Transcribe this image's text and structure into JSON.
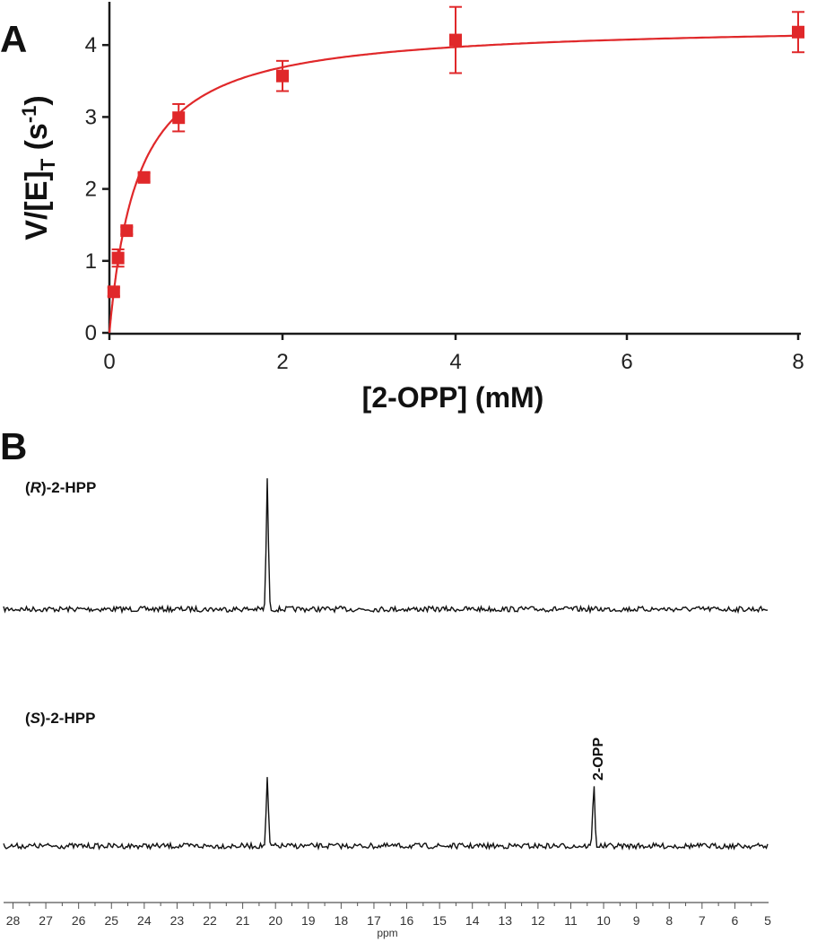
{
  "panel_a": {
    "label": "A",
    "y_label_main": "V/[E]",
    "y_label_sub": "T",
    "y_label_unit_open": " (s",
    "y_label_unit_sup": "-1",
    "y_label_unit_close": ")",
    "x_label": "[2-OPP] (mM)"
  },
  "panel_b": {
    "label": "B",
    "trace_r_label_open": "(",
    "trace_r_label_italic": "R",
    "trace_r_label_close": ")-2-HPP",
    "trace_s_label_open": "(",
    "trace_s_label_italic": "S",
    "trace_s_label_close": ")-2-HPP",
    "peak_annotation": "2-OPP",
    "x_label": "ppm"
  },
  "colors": {
    "curve": "#e0282a",
    "marker": "#e0282a",
    "axis": "#1a1a1a",
    "spectrum": "#111111"
  },
  "chart_data": [
    {
      "type": "scatter",
      "title": "",
      "xlabel": "[2-OPP] (mM)",
      "ylabel": "V/[E]T (s-1)",
      "x_tick_labels": [
        "0",
        "2",
        "4",
        "6",
        "8"
      ],
      "x_tick_values": [
        0,
        2,
        4,
        6,
        8
      ],
      "y_tick_values": [
        0,
        1,
        2,
        3,
        4
      ],
      "xlim": [
        0,
        8
      ],
      "ylim": [
        0,
        4.4
      ],
      "x_axis_note": "broken axis: segment 0-4 occupies the left half, 4-8 the right half",
      "grid": false,
      "series": [
        {
          "marker": "square",
          "points": [
            {
              "x": 0.05,
              "y": 0.57,
              "err": 0.06
            },
            {
              "x": 0.1,
              "y": 1.04,
              "err": 0.12
            },
            {
              "x": 0.2,
              "y": 1.42,
              "err": 0.05
            },
            {
              "x": 0.4,
              "y": 2.16,
              "err": 0.06
            },
            {
              "x": 0.8,
              "y": 2.99,
              "err": 0.19
            },
            {
              "x": 2.0,
              "y": 3.57,
              "err": 0.21
            },
            {
              "x": 4.0,
              "y": 4.07,
              "err": 0.46
            },
            {
              "x": 8.0,
              "y": 4.18,
              "err": 0.28
            }
          ]
        }
      ],
      "fit": {
        "type": "michaelis-menten",
        "kcat": 4.3,
        "Km": 0.33
      }
    },
    {
      "type": "line",
      "title": "",
      "xlabel": "ppm",
      "x_tick_labels": [
        "28",
        "27",
        "26",
        "25",
        "24",
        "23",
        "22",
        "21",
        "20",
        "19",
        "18",
        "17",
        "16",
        "15",
        "14",
        "13",
        "12",
        "11",
        "10",
        "9",
        "8",
        "7",
        "6",
        "5"
      ],
      "xlim": [
        28.4,
        5.0
      ],
      "x_reversed": true,
      "series": [
        {
          "name": "(R)-2-HPP",
          "peaks": [
            {
              "ppm": 20.25,
              "relative_height": 1.0
            }
          ]
        },
        {
          "name": "(S)-2-HPP",
          "peaks": [
            {
              "ppm": 20.25,
              "relative_height": 0.52
            },
            {
              "ppm": 10.3,
              "relative_height": 0.47,
              "label": "2-OPP"
            }
          ]
        }
      ]
    }
  ]
}
